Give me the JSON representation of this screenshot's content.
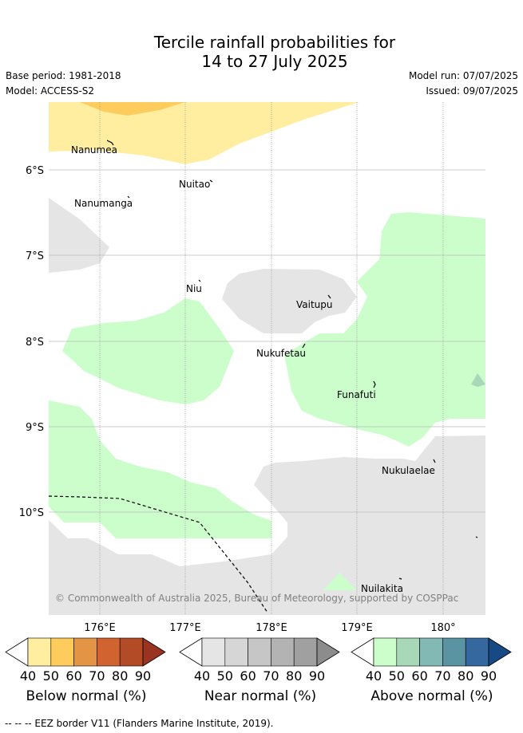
{
  "title_line1": "Tercile rainfall probabilities for",
  "title_line2": "14 to 27 July 2025",
  "base_period": "Base period: 1981-2018",
  "model": "Model: ACCESS-S2",
  "model_run": "Model run: 07/07/2025",
  "issued": "Issued: 09/07/2025",
  "copyright": "© Commonwealth of Australia 2025, Bureau of Meteorology, supported by COSPPac",
  "footer_note": "--  --  -- EEZ border V11 (Flanders Marine Institute, 2019).",
  "axes": {
    "x_ticks": [
      "176°E",
      "177°E",
      "178°E",
      "179°E",
      "180°"
    ],
    "y_ticks": [
      "6°S",
      "7°S",
      "8°S",
      "9°S",
      "10°S"
    ]
  },
  "places": [
    {
      "name": "Nanumea"
    },
    {
      "name": "Nuitao"
    },
    {
      "name": "Nanumanga"
    },
    {
      "name": "Niu"
    },
    {
      "name": "Vaitupu"
    },
    {
      "name": "Nukufetau"
    },
    {
      "name": "Funafuti"
    },
    {
      "name": "Nukulaelae"
    },
    {
      "name": "Nuilakita"
    }
  ],
  "colorbars": [
    {
      "label": "Below normal (%)",
      "ticks": [
        "40",
        "50",
        "60",
        "70",
        "80",
        "90"
      ],
      "colors": [
        "#ffeda0",
        "#fecc5c",
        "#e39545",
        "#d0632f",
        "#b44b27",
        "#9a3320"
      ]
    },
    {
      "label": "Near normal (%)",
      "ticks": [
        "40",
        "50",
        "60",
        "70",
        "80",
        "90"
      ],
      "colors": [
        "#e5e5e5",
        "#d6d6d6",
        "#c6c6c6",
        "#b3b3b3",
        "#a0a0a0",
        "#8c8c8c"
      ]
    },
    {
      "label": "Above normal (%)",
      "ticks": [
        "40",
        "50",
        "60",
        "70",
        "80",
        "90"
      ],
      "colors": [
        "#ccfecc",
        "#a7d9b9",
        "#83b9b5",
        "#5a93a1",
        "#34689e",
        "#174a84"
      ]
    }
  ],
  "colors": {
    "below_40_50": "#ffeda0",
    "below_50_60": "#fecc5c",
    "near_40_50": "#e5e5e5",
    "above_40_50": "#ccfecc",
    "above_50_60": "#a7d9b9",
    "grid": "#bbbbbb"
  }
}
